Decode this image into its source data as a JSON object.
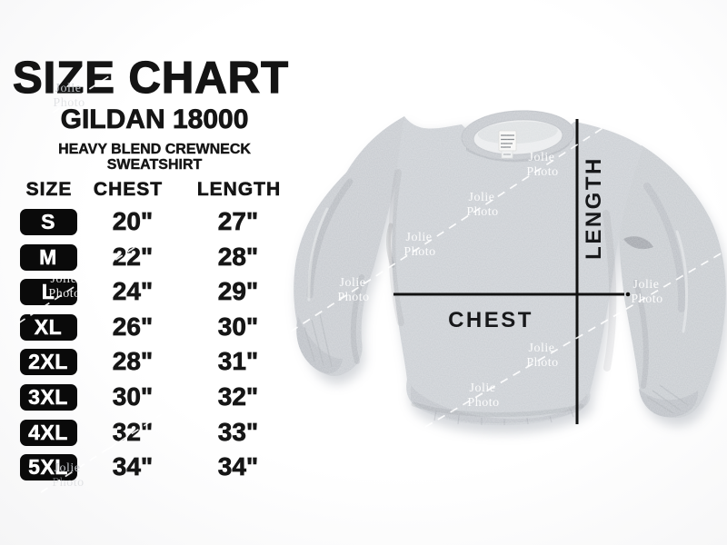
{
  "meta": {
    "title": "SIZE CHART",
    "brand_model": "GILDAN 18000",
    "product_line1": "HEAVY BLEND CREWNECK",
    "product_line2": "SWEATSHIRT"
  },
  "table": {
    "headers": [
      "SIZE",
      "CHEST",
      "LENGTH"
    ],
    "rows": [
      {
        "size": "S",
        "chest": "20\"",
        "length": "27\""
      },
      {
        "size": "M",
        "chest": "22\"",
        "length": "28\""
      },
      {
        "size": "L",
        "chest": "24\"",
        "length": "29\""
      },
      {
        "size": "XL",
        "chest": "26\"",
        "length": "30\""
      },
      {
        "size": "2XL",
        "chest": "28\"",
        "length": "31\""
      },
      {
        "size": "3XL",
        "chest": "30\"",
        "length": "32\""
      },
      {
        "size": "4XL",
        "chest": "32\"",
        "length": "33\""
      },
      {
        "size": "5XL",
        "chest": "34\"",
        "length": "34\""
      }
    ]
  },
  "diagram": {
    "chest_label": "CHEST",
    "length_label": "LENGTH"
  },
  "watermark": {
    "line1": "Jolie",
    "line2": "Photo"
  },
  "colors": {
    "text_black": "#141414",
    "badge_bg": "#0a0a0a",
    "badge_text": "#ffffff",
    "garment_gray": "#c7cbd0",
    "measure_line": "#111111",
    "watermark": "#ffffff"
  },
  "chart_data": {
    "type": "table",
    "title": "SIZE CHART",
    "subtitle": "GILDAN 18000 HEAVY BLEND CREWNECK SWEATSHIRT",
    "columns": [
      "SIZE",
      "CHEST",
      "LENGTH"
    ],
    "rows": [
      [
        "S",
        "20\"",
        "27\""
      ],
      [
        "M",
        "22\"",
        "28\""
      ],
      [
        "L",
        "24\"",
        "29\""
      ],
      [
        "XL",
        "26\"",
        "30\""
      ],
      [
        "2XL",
        "28\"",
        "31\""
      ],
      [
        "3XL",
        "30\"",
        "32\""
      ],
      [
        "4XL",
        "32\"",
        "33\""
      ],
      [
        "5XL",
        "34\"",
        "34\""
      ]
    ],
    "units": "inches"
  }
}
